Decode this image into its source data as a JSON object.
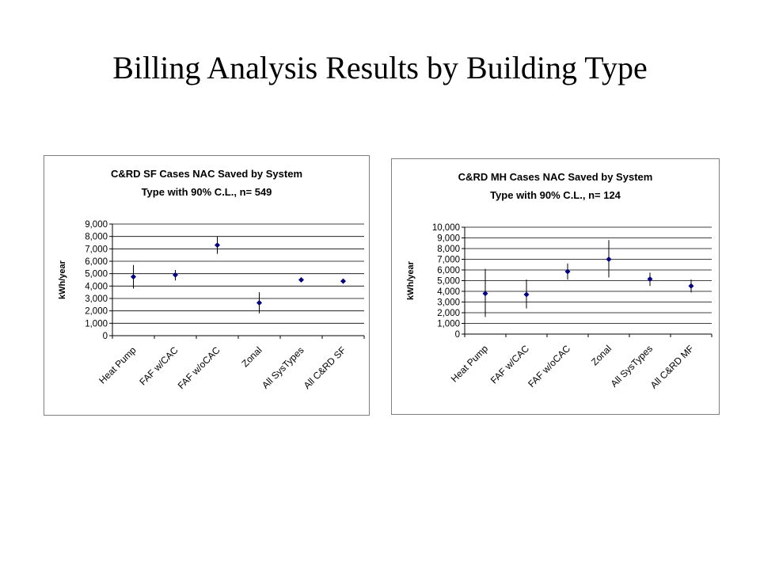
{
  "slide": {
    "title": "Billing Analysis Results by Building Type"
  },
  "chart_data": [
    {
      "type": "scatter",
      "title_lines": [
        "C&RD SF Cases NAC Saved by System",
        "Type with 90% C.L., n= 549"
      ],
      "ylabel": "kWh/year",
      "ylim": [
        0,
        9000
      ],
      "yticks": [
        0,
        1000,
        2000,
        3000,
        4000,
        5000,
        6000,
        7000,
        8000,
        9000
      ],
      "ytick_labels": [
        "0",
        "1,000",
        "2,000",
        "3,000",
        "4,000",
        "5,000",
        "6,000",
        "7,000",
        "8,000",
        "9,000"
      ],
      "categories": [
        "Heat Pump",
        "FAF w/CAC",
        "FAF w/oCAC",
        "Zonal",
        "All SysTypes",
        "All C&RD SF"
      ],
      "values": [
        4750,
        4900,
        7300,
        2650,
        4500,
        4400
      ],
      "err_low": [
        3800,
        4450,
        6600,
        1800,
        4350,
        4350
      ],
      "err_high": [
        5700,
        5300,
        8000,
        3500,
        4650,
        4450
      ],
      "grid": true,
      "color": "#000080"
    },
    {
      "type": "scatter",
      "title_lines": [
        "C&RD MH Cases NAC Saved by System",
        "Type with 90% C.L., n= 124"
      ],
      "ylabel": "kWh/year",
      "ylim": [
        0,
        10000
      ],
      "yticks": [
        0,
        1000,
        2000,
        3000,
        4000,
        5000,
        6000,
        7000,
        8000,
        9000,
        10000
      ],
      "ytick_labels": [
        "0",
        "1,000",
        "2,000",
        "3,000",
        "4,000",
        "5,000",
        "6,000",
        "7,000",
        "8,000",
        "9,000",
        "10,000"
      ],
      "categories": [
        "Heat Pump",
        "FAF w/CAC",
        "FAF w/oCAC",
        "Zonal",
        "All SysTypes",
        "All C&RD MF"
      ],
      "values": [
        3800,
        3700,
        5850,
        7000,
        5150,
        4500
      ],
      "err_low": [
        1600,
        2400,
        5100,
        5300,
        4500,
        3900
      ],
      "err_high": [
        6100,
        5100,
        6600,
        8800,
        5750,
        5100
      ],
      "grid": true,
      "color": "#000080"
    }
  ]
}
